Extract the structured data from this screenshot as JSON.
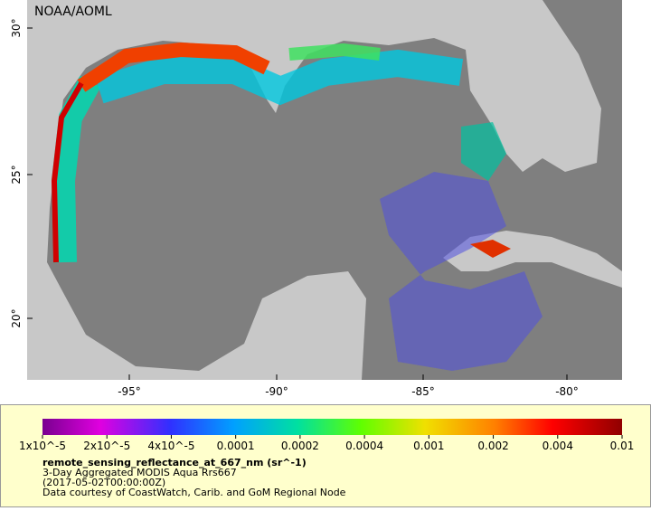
{
  "map": {
    "credit": "NOAA/AOML",
    "lat_labels": [
      "30°",
      "25°",
      "20°"
    ],
    "lon_labels": [
      "-95°",
      "-90°",
      "-85°",
      "-80°"
    ]
  },
  "colorbar": {
    "ticks": [
      "1x10^-5",
      "2x10^-5",
      "4x10^-5",
      "0.0001",
      "0.0002",
      "0.0004",
      "0.001",
      "0.002",
      "0.004",
      "0.01"
    ],
    "title": "remote_sensing_reflectance_at_667_nm (sr^-1)",
    "subtitle": "3-Day Aggregated MODIS Aqua Rrs667",
    "date": "(2017-05-02T00:00:00Z)",
    "credit": "Data courtesy of CoastWatch, Carib. and GoM Regional Node"
  }
}
